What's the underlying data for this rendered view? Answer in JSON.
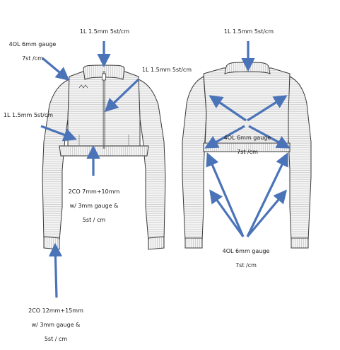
{
  "colors": {
    "arrow": "#4a73b8",
    "outline": "#3a3a3a",
    "rib": "#bdbdbd",
    "fill": "#f4f4f4",
    "background": "#ffffff"
  },
  "labels": {
    "front_collar_gauge": "1L 1.5mm 5st/cm",
    "front_body_gauge_line1": "4OL 6mm gauge",
    "front_body_gauge_line2": "7st /cm",
    "front_zip_gauge": "1L 1.5mm 5st/cm",
    "front_left_gauge": "1L 1.5mm 5st/cm",
    "front_hem_line1": "2CO 7mm+10mm",
    "front_hem_line2": "w/ 3mm gauge &",
    "front_hem_line3": "5st / cm",
    "cuff_line1": "2CO 12mm+15mm",
    "cuff_line2": "w/ 3mm gauge &",
    "cuff_line3": "5st / cm",
    "back_collar_gauge": "1L 1.5mm 5st/cm",
    "back_body_line1": "4OL 6mm gauge",
    "back_body_line2": "7st /cm",
    "back_sleeve_line1": "4OL 6mm gauge",
    "back_sleeve_line2": "7st /cm"
  }
}
